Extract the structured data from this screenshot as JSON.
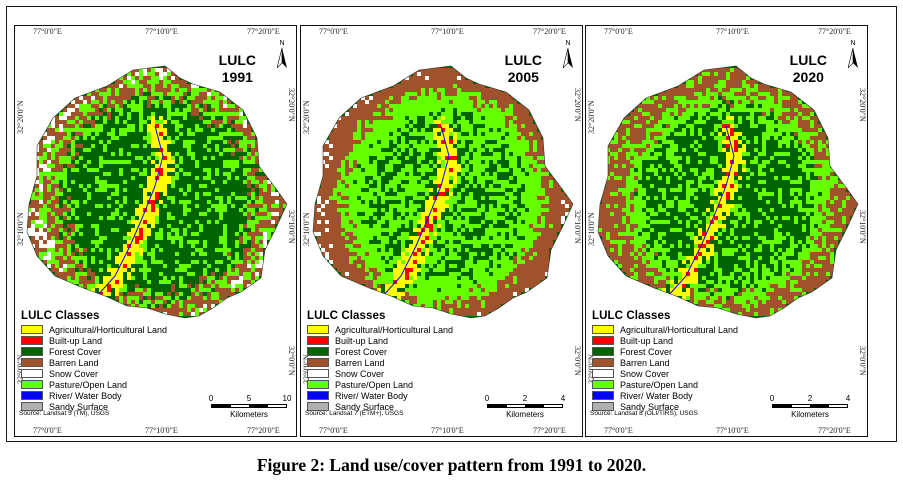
{
  "figure_caption": "Figure 2: Land use/cover pattern from 1991 to 2020.",
  "legend_title": "LULC Classes",
  "scale_unit": "Kilometers",
  "north_label": "N",
  "classes": [
    {
      "label": "Agricultural/Horticultural Land",
      "color": "#ffff00"
    },
    {
      "label": "Built-up Land",
      "color": "#ff0000"
    },
    {
      "label": "Forest Cover",
      "color": "#006400"
    },
    {
      "label": "Barren Land",
      "color": "#a0522d"
    },
    {
      "label": "Snow Cover",
      "color": "#ffffff"
    },
    {
      "label": "Pasture/Open Land",
      "color": "#66ff00"
    },
    {
      "label": "River/ Water Body",
      "color": "#0000ff"
    },
    {
      "label": "Sandy Surface",
      "color": "#b0b0b0"
    }
  ],
  "panels": [
    {
      "title_line1": "LULC",
      "title_line2": "1991",
      "source": "Source: Landsat 5 (TM), USGS",
      "scale_ticks": [
        "0",
        "5",
        "10"
      ],
      "coords_top": [
        "77°0'0\"E",
        "77°10'0\"E",
        "77°20'0\"E"
      ],
      "coords_bottom": [
        "77°0'0\"E",
        "77°10'0\"E",
        "77°20'0\"E"
      ],
      "coords_left": [
        "32°20'0\"N",
        "32°10'0\"N",
        "32°0'0\"N"
      ],
      "coords_right": [
        "32°20'0\"N",
        "32°10'0\"N",
        "32°0'0\"N"
      ],
      "dominant": "forest"
    },
    {
      "title_line1": "LULC",
      "title_line2": "2005",
      "source": "Source: Landsat 7 (ETM+), USGS",
      "scale_ticks": [
        "0",
        "2",
        "4"
      ],
      "coords_top": [
        "77°0'0\"E",
        "77°10'0\"E",
        "77°20'0\"E"
      ],
      "coords_bottom": [
        "77°0'0\"E",
        "77°10'0\"E",
        "77°20'0\"E"
      ],
      "coords_left": [
        "32°20'0\"N",
        "32°10'0\"N",
        "32°0'0\"N"
      ],
      "coords_right": [
        "32°20'0\"N",
        "32°10'0\"N",
        "32°0'0\"N"
      ],
      "dominant": "pasture"
    },
    {
      "title_line1": "LULC",
      "title_line2": "2020",
      "source": "Source: Landsat 8 (OLI/TIRS), USGS",
      "scale_ticks": [
        "0",
        "2",
        "4"
      ],
      "coords_top": [
        "77°0'0\"E",
        "77°10'0\"E",
        "77°20'0\"E"
      ],
      "coords_bottom": [
        "77°0'0\"E",
        "77°10'0\"E",
        "77°20'0\"E"
      ],
      "coords_left": [
        "32°20'0\"N",
        "32°10'0\"N",
        "32°0'0\"N"
      ],
      "coords_right": [
        "32°20'0\"N",
        "32°10'0\"N",
        "32°0'0\"N"
      ],
      "dominant": "barren"
    }
  ]
}
